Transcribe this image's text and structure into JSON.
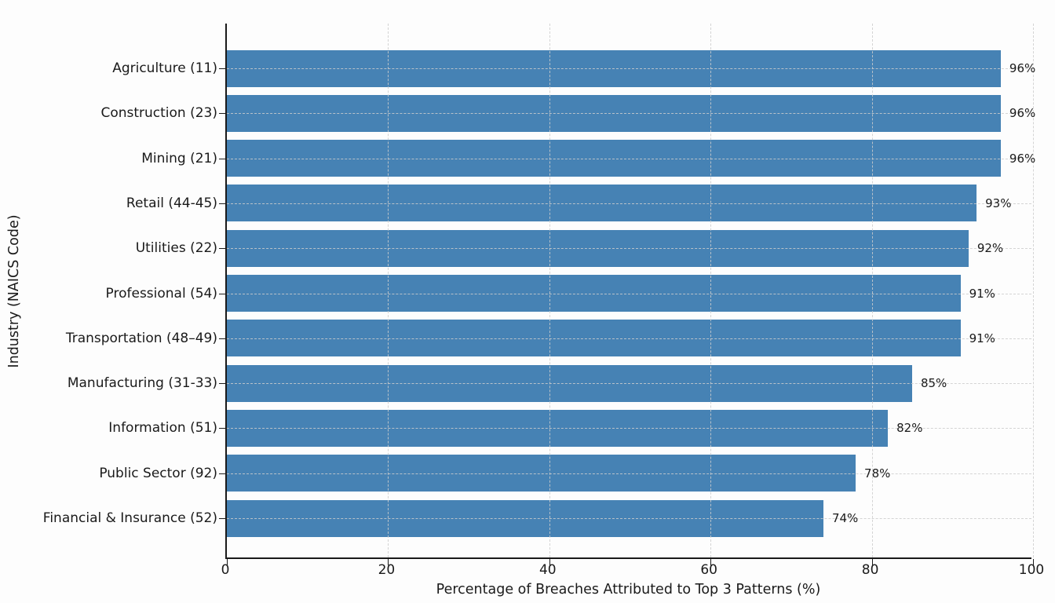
{
  "chart_data": {
    "type": "bar",
    "orientation": "horizontal",
    "title": "",
    "xlabel": "Percentage of Breaches Attributed to Top 3 Patterns (%)",
    "ylabel": "Industry (NAICS Code)",
    "categories": [
      "Agriculture (11)",
      "Construction (23)",
      "Mining (21)",
      "Retail (44-45)",
      "Utilities (22)",
      "Professional (54)",
      "Transportation (48–49)",
      "Manufacturing (31-33)",
      "Information (51)",
      "Public Sector (92)",
      "Financial & Insurance (52)"
    ],
    "values": [
      96,
      96,
      96,
      93,
      92,
      91,
      91,
      85,
      82,
      78,
      74
    ],
    "value_labels": [
      "96%",
      "96%",
      "96%",
      "93%",
      "92%",
      "91%",
      "91%",
      "85%",
      "82%",
      "78%",
      "74%"
    ],
    "x_ticks": [
      0,
      20,
      40,
      60,
      80,
      100
    ],
    "x_tick_labels": [
      "0",
      "20",
      "40",
      "60",
      "80",
      "100"
    ],
    "xlim": [
      0,
      100
    ],
    "grid": "dashed, both axes",
    "legend": "none",
    "colors": {
      "bar": "#4682b4",
      "axis": "#1a1a1a",
      "grid": "#cdcdcd",
      "text": "#1a1a1a",
      "background": "#fdfdfd"
    }
  }
}
